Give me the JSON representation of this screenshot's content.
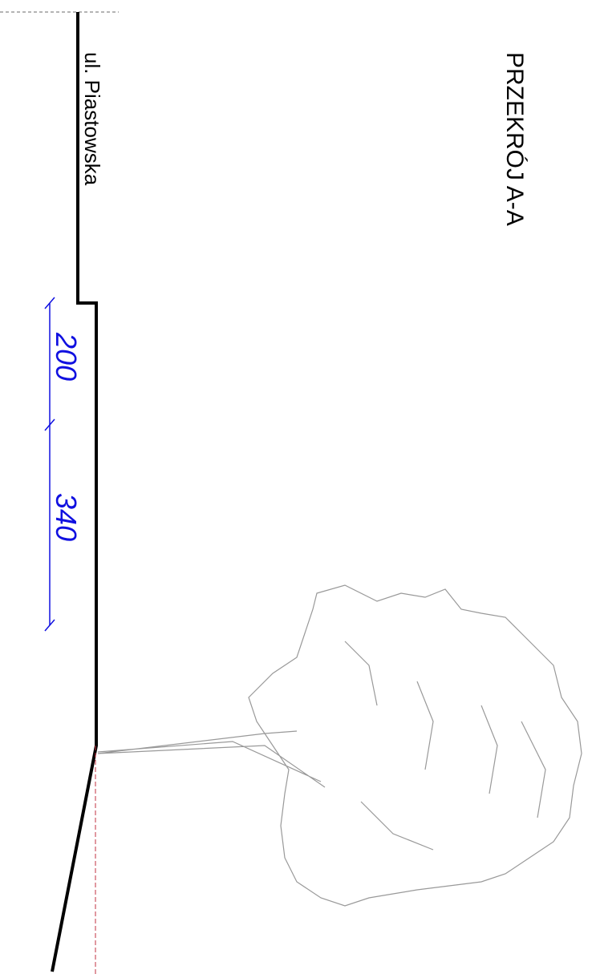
{
  "title": "PRZEKRÓJ A-A",
  "street": "ul. Piastowska",
  "dimensions": [
    {
      "label": "200"
    },
    {
      "label": "340"
    }
  ]
}
